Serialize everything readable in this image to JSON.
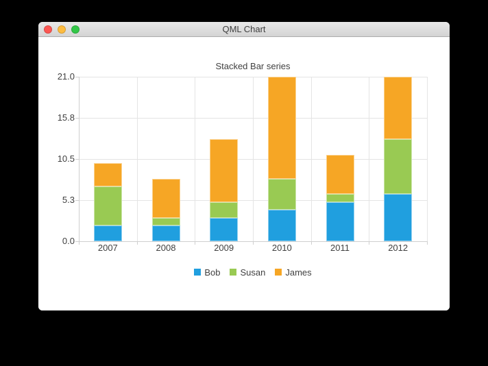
{
  "window": {
    "title": "QML Chart",
    "traffic_lights": {
      "close_color": "#fc5753",
      "minimize_color": "#fdbc40",
      "zoom_color": "#33c748"
    }
  },
  "chart_data": {
    "type": "bar",
    "stacked": true,
    "title": "Stacked Bar series",
    "categories": [
      "2007",
      "2008",
      "2009",
      "2010",
      "2011",
      "2012"
    ],
    "series": [
      {
        "name": "Bob",
        "color": "#209fdf",
        "values": [
          2,
          2,
          3,
          4,
          5,
          6
        ]
      },
      {
        "name": "Susan",
        "color": "#99ca53",
        "values": [
          5,
          1,
          2,
          4,
          1,
          7
        ]
      },
      {
        "name": "James",
        "color": "#f6a625",
        "values": [
          3,
          5,
          8,
          13,
          5,
          8
        ]
      }
    ],
    "totals": [
      10,
      8,
      13,
      21,
      11,
      21
    ],
    "ylim": [
      0,
      21
    ],
    "y_tick_labels": [
      "0.0",
      "5.3",
      "10.5",
      "15.8",
      "21.0"
    ],
    "xlabel": "",
    "ylabel": "",
    "grid": true,
    "legend_position": "bottom"
  }
}
